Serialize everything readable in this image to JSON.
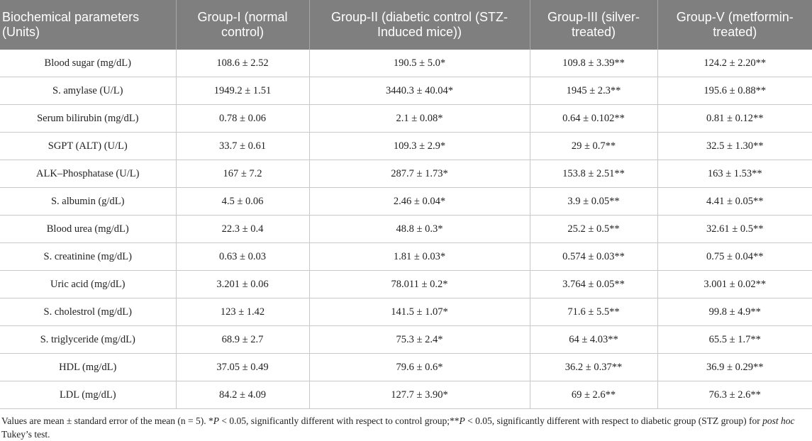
{
  "table": {
    "headers": [
      "Biochemical parameters (Units)",
      "Group-I (normal control)",
      "Group-II (diabetic control (STZ-Induced mice))",
      "Group-III (silver-treated)",
      "Group-V (metformin-treated)"
    ],
    "rows": [
      [
        "Blood sugar (mg/dL)",
        "108.6 ± 2.52",
        "190.5 ± 5.0*",
        "109.8 ± 3.39**",
        "124.2 ± 2.20**"
      ],
      [
        "S. amylase (U/L)",
        "1949.2 ± 1.51",
        "3440.3 ± 40.04*",
        "1945 ± 2.3**",
        "195.6 ± 0.88**"
      ],
      [
        "Serum bilirubin (mg/dL)",
        "0.78 ± 0.06",
        "2.1 ± 0.08*",
        "0.64 ± 0.102**",
        "0.81 ± 0.12**"
      ],
      [
        "SGPT (ALT) (U/L)",
        "33.7 ± 0.61",
        "109.3 ± 2.9*",
        "29 ± 0.7**",
        "32.5 ± 1.30**"
      ],
      [
        "ALK–Phosphatase (U/L)",
        "167 ± 7.2",
        "287.7 ± 1.73*",
        "153.8 ± 2.51**",
        "163 ± 1.53**"
      ],
      [
        "S. albumin (g/dL)",
        "4.5 ± 0.06",
        "2.46 ± 0.04*",
        "3.9 ± 0.05**",
        "4.41 ± 0.05**"
      ],
      [
        "Blood urea (mg/dL)",
        "22.3 ± 0.4",
        "48.8 ± 0.3*",
        "25.2 ± 0.5**",
        "32.61 ± 0.5**"
      ],
      [
        "S. creatinine (mg/dL)",
        "0.63 ± 0.03",
        "1.81 ± 0.03*",
        "0.574 ± 0.03**",
        "0.75 ± 0.04**"
      ],
      [
        "Uric acid (mg/dL)",
        "3.201 ± 0.06",
        "78.011 ± 0.2*",
        "3.764 ± 0.05**",
        "3.001 ± 0.02**"
      ],
      [
        "S. cholestrol (mg/dL)",
        "123 ± 1.42",
        "141.5 ± 1.07*",
        "71.6 ± 5.5**",
        "99.8 ± 4.9**"
      ],
      [
        "S. triglyceride (mg/dL)",
        "68.9 ± 2.7",
        "75.3 ± 2.4*",
        "64 ± 4.03**",
        "65.5 ± 1.7**"
      ],
      [
        "HDL (mg/dL)",
        "37.05 ± 0.49",
        "79.6 ± 0.6*",
        "36.2 ± 0.37**",
        "36.9 ± 0.29**"
      ],
      [
        "LDL (mg/dL)",
        "84.2 ± 4.09",
        "127.7 ± 3.90*",
        "69 ± 2.6**",
        "76.3 ± 2.6**"
      ]
    ]
  },
  "footnote": {
    "part1": "Values are mean ± standard error of the mean (n = 5). *",
    "p1": "P",
    "part2": " < 0.05, significantly different with respect to control group;**",
    "p2": "P",
    "part3": " < 0.05, significantly different with respect to diabetic group (STZ group) for ",
    "posthoc": "post hoc",
    "part4": " Tukey’s test."
  },
  "colors": {
    "header_bg": "#7f7f7f",
    "header_text": "#ffffff",
    "grid": "#c8c8c8"
  }
}
